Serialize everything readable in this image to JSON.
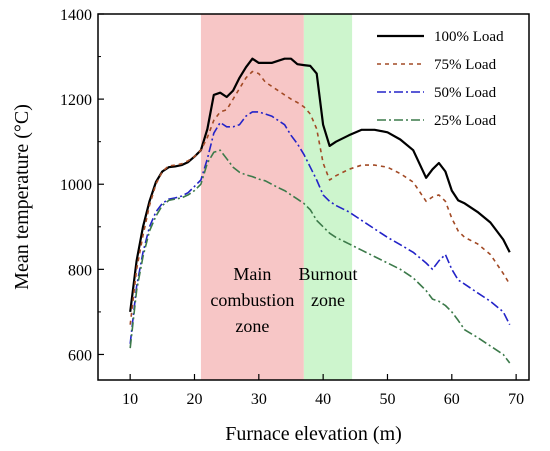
{
  "chart_data": {
    "type": "line",
    "xlabel": "Furnace elevation (m)",
    "ylabel": "Mean temperature (°C)",
    "xlim": [
      5,
      72
    ],
    "ylim": [
      540,
      1400
    ],
    "xticks": [
      10,
      20,
      30,
      40,
      50,
      60,
      70
    ],
    "yticks": [
      600,
      800,
      1000,
      1200,
      1400
    ],
    "grid": false,
    "legend_position": "top-right",
    "zones": [
      {
        "id": "main",
        "label_lines": [
          "Main",
          "combustion",
          "zone"
        ],
        "x_range": [
          21,
          37
        ],
        "color": "#f7c6c6"
      },
      {
        "id": "burnout",
        "label_lines": [
          "Burnout",
          "zone"
        ],
        "x_range": [
          37,
          44.5
        ],
        "color": "#cdf5cd"
      }
    ],
    "series": [
      {
        "name": "100% Load",
        "color": "#000000",
        "dash": "",
        "width": 2.2,
        "x": [
          10,
          11,
          12,
          13,
          14,
          15,
          16,
          17,
          18,
          19,
          20,
          21,
          22,
          23,
          24,
          25,
          26,
          27,
          28,
          29,
          30,
          31,
          32,
          33,
          34,
          35,
          36,
          37,
          38,
          39,
          40,
          41,
          42,
          44,
          46,
          48,
          50,
          52,
          54,
          56,
          57,
          58,
          59,
          60,
          61,
          62,
          64,
          66,
          68,
          69
        ],
        "y": [
          700,
          820,
          900,
          960,
          1005,
          1030,
          1040,
          1042,
          1045,
          1052,
          1065,
          1080,
          1130,
          1210,
          1215,
          1205,
          1220,
          1250,
          1275,
          1295,
          1285,
          1285,
          1285,
          1290,
          1295,
          1295,
          1282,
          1280,
          1278,
          1260,
          1140,
          1090,
          1100,
          1115,
          1128,
          1128,
          1122,
          1105,
          1080,
          1015,
          1035,
          1050,
          1030,
          985,
          962,
          955,
          935,
          910,
          870,
          840
        ]
      },
      {
        "name": "75% Load",
        "color": "#a24a25",
        "dash": "4,4",
        "width": 1.6,
        "x": [
          10,
          11,
          12,
          13,
          14,
          15,
          16,
          17,
          18,
          19,
          20,
          21,
          22,
          23,
          24,
          25,
          26,
          27,
          28,
          29,
          30,
          31,
          32,
          33,
          34,
          35,
          36,
          37,
          38,
          39,
          40,
          41,
          42,
          44,
          46,
          48,
          50,
          52,
          54,
          56,
          57,
          58,
          59,
          60,
          61,
          62,
          64,
          66,
          68,
          69
        ],
        "y": [
          670,
          800,
          880,
          950,
          1000,
          1030,
          1043,
          1045,
          1048,
          1055,
          1065,
          1080,
          1110,
          1150,
          1170,
          1175,
          1200,
          1225,
          1250,
          1265,
          1260,
          1240,
          1230,
          1220,
          1210,
          1200,
          1192,
          1182,
          1165,
          1130,
          1050,
          1010,
          1020,
          1035,
          1045,
          1045,
          1040,
          1025,
          1005,
          960,
          970,
          975,
          960,
          920,
          890,
          875,
          860,
          835,
          790,
          765
        ]
      },
      {
        "name": "50% Load",
        "color": "#2323c8",
        "dash": "9,3,2,3",
        "width": 1.6,
        "x": [
          10,
          11,
          12,
          13,
          14,
          15,
          16,
          17,
          18,
          19,
          20,
          21,
          22,
          23,
          24,
          25,
          26,
          27,
          28,
          29,
          30,
          31,
          32,
          33,
          34,
          35,
          36,
          37,
          38,
          39,
          40,
          41,
          42,
          44,
          46,
          48,
          50,
          52,
          54,
          56,
          57,
          58,
          59,
          60,
          61,
          62,
          64,
          66,
          68,
          69
        ],
        "y": [
          625,
          760,
          840,
          900,
          935,
          955,
          965,
          968,
          972,
          980,
          995,
          1010,
          1060,
          1120,
          1145,
          1135,
          1135,
          1140,
          1160,
          1170,
          1170,
          1165,
          1160,
          1150,
          1140,
          1115,
          1095,
          1070,
          1040,
          1010,
          975,
          960,
          950,
          935,
          915,
          895,
          875,
          858,
          840,
          815,
          800,
          820,
          835,
          800,
          775,
          765,
          745,
          725,
          700,
          670
        ]
      },
      {
        "name": "25% Load",
        "color": "#3c7a4a",
        "dash": "9,3,2,3",
        "width": 1.6,
        "x": [
          10,
          11,
          12,
          13,
          14,
          15,
          16,
          17,
          18,
          19,
          20,
          21,
          22,
          23,
          24,
          25,
          26,
          27,
          28,
          29,
          30,
          31,
          32,
          33,
          34,
          35,
          36,
          37,
          38,
          39,
          40,
          41,
          42,
          44,
          46,
          48,
          50,
          52,
          54,
          56,
          57,
          58,
          59,
          60,
          61,
          62,
          64,
          66,
          68,
          69
        ],
        "y": [
          615,
          750,
          830,
          890,
          925,
          950,
          962,
          965,
          968,
          975,
          985,
          1000,
          1050,
          1075,
          1080,
          1060,
          1040,
          1028,
          1022,
          1018,
          1012,
          1008,
          1000,
          992,
          985,
          975,
          965,
          955,
          940,
          915,
          900,
          885,
          875,
          860,
          845,
          830,
          815,
          800,
          780,
          750,
          730,
          725,
          715,
          700,
          680,
          658,
          640,
          620,
          600,
          580
        ]
      }
    ]
  }
}
